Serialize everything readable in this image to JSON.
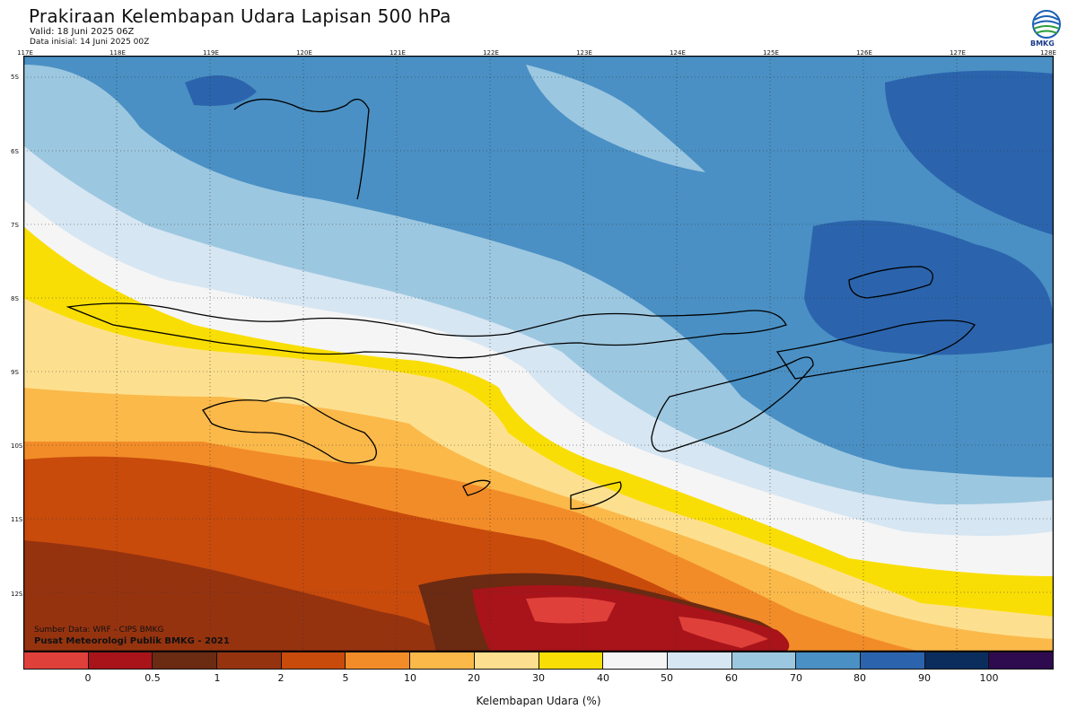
{
  "title": "Prakiraan Kelembapan Udara Lapisan 500 hPa",
  "valid": "Valid: 18 Juni 2025 06Z",
  "init": "Data inisial: 14 Juni 2025 00Z",
  "logo_text": "BMKG",
  "lon_labels": [
    "117E",
    "118E",
    "119E",
    "120E",
    "121E",
    "122E",
    "123E",
    "124E",
    "125E",
    "126E",
    "127E",
    "128E"
  ],
  "lat_labels": [
    "5S",
    "6S",
    "7S",
    "8S",
    "9S",
    "10S",
    "11S",
    "12S"
  ],
  "credit_source": "Sumber Data: WRF - CIPS BMKG",
  "credit_org": "Pusat Meteorologi Publik BMKG - 2021",
  "colorbar": {
    "label": "Kelembapan Udara (%)",
    "ticks": [
      "0",
      "0.5",
      "1",
      "2",
      "5",
      "10",
      "20",
      "30",
      "40",
      "50",
      "60",
      "70",
      "80",
      "90",
      "100"
    ],
    "colors": [
      "#e0403a",
      "#a8141a",
      "#6b2a12",
      "#96330f",
      "#c84b0c",
      "#f28c28",
      "#fbb94a",
      "#fde08f",
      "#f9de06",
      "#f5f5f5",
      "#d6e6f2",
      "#9cc7e0",
      "#4a90c4",
      "#2b64ad",
      "#0b2d5e",
      "#2e0a4f"
    ]
  }
}
